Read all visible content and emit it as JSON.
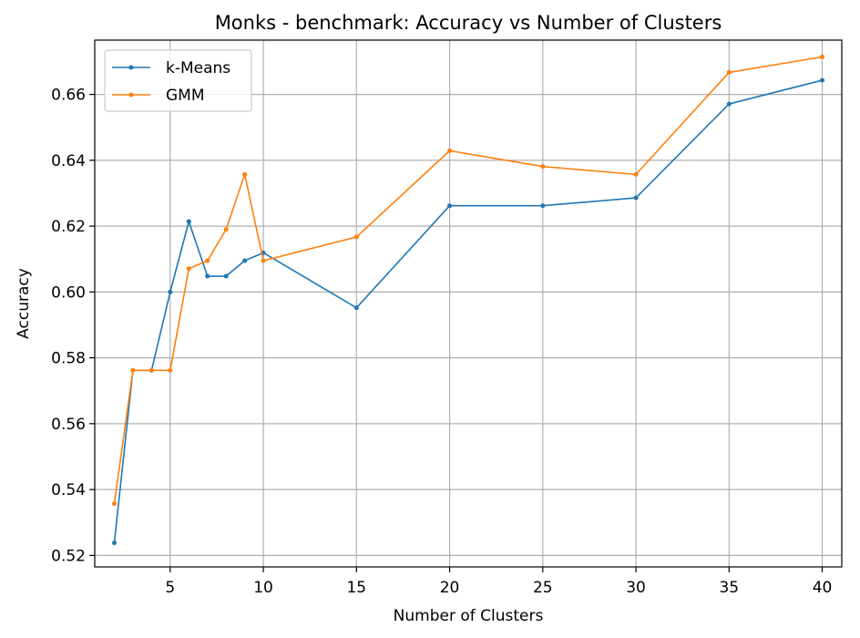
{
  "chart_data": {
    "type": "line",
    "title": "Monks - benchmark: Accuracy vs Number of Clusters",
    "xlabel": "Number of Clusters",
    "ylabel": "Accuracy",
    "x": [
      2,
      3,
      4,
      5,
      6,
      7,
      8,
      9,
      10,
      15,
      20,
      25,
      30,
      35,
      40
    ],
    "xlim": [
      0.95,
      41.05
    ],
    "ylim": [
      0.5165,
      0.6765
    ],
    "xticks": [
      5,
      10,
      15,
      20,
      25,
      30,
      35,
      40
    ],
    "yticks": [
      0.52,
      0.54,
      0.56,
      0.58,
      0.6,
      0.62,
      0.64,
      0.66
    ],
    "ytick_labels": [
      "0.52",
      "0.54",
      "0.56",
      "0.58",
      "0.60",
      "0.62",
      "0.64",
      "0.66"
    ],
    "grid": true,
    "legend_position": "upper-left",
    "series": [
      {
        "name": "k-Means",
        "color": "#1f77b4",
        "values": [
          0.5238,
          0.5762,
          0.5762,
          0.6,
          0.6214,
          0.6048,
          0.6048,
          0.6095,
          0.6119,
          0.5952,
          0.6262,
          0.6262,
          0.6286,
          0.6571,
          0.6643
        ]
      },
      {
        "name": "GMM",
        "color": "#ff7f0e",
        "values": [
          0.5357,
          0.5762,
          0.5762,
          0.5762,
          0.6071,
          0.6095,
          0.619,
          0.6357,
          0.6095,
          0.6167,
          0.6429,
          0.6381,
          0.6357,
          0.6667,
          0.6714
        ]
      }
    ]
  }
}
